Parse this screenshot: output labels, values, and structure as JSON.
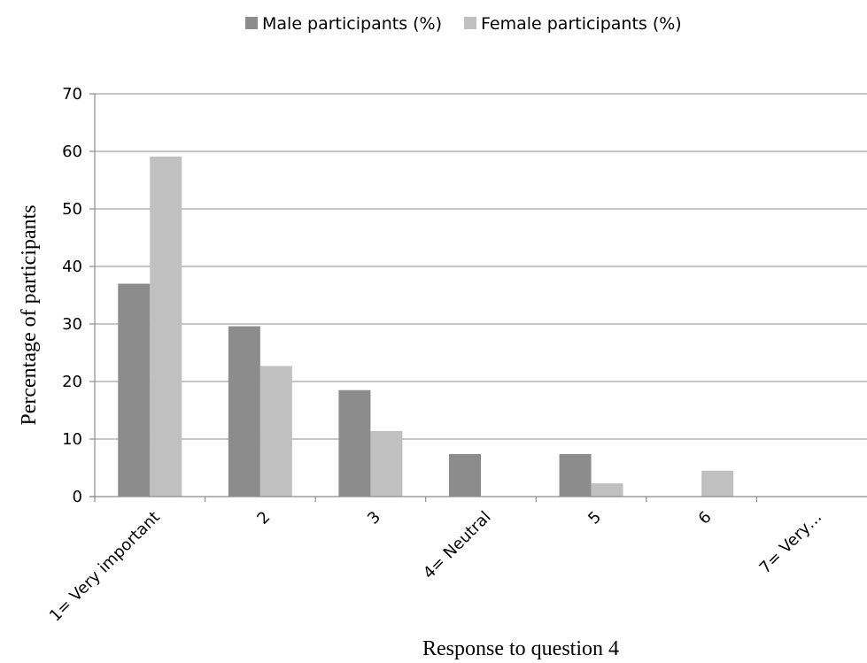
{
  "chart_data": {
    "type": "bar",
    "title": "",
    "xlabel": "Response to question 4",
    "ylabel": "Percentage of participants",
    "categories": [
      "1= Very important",
      "2",
      "3",
      "4= Neutral",
      "5",
      "6",
      "7= Very…"
    ],
    "series": [
      {
        "name": "Male participants (%)",
        "color": "#8c8c8c",
        "values": [
          37,
          29.6,
          18.5,
          7.4,
          7.4,
          0,
          0
        ]
      },
      {
        "name": "Female participants (%)",
        "color": "#c0c0c0",
        "values": [
          59.1,
          22.7,
          11.4,
          0,
          2.3,
          4.5,
          0
        ]
      }
    ],
    "ylim": [
      0,
      70
    ],
    "yticks": [
      0,
      10,
      20,
      30,
      40,
      50,
      60,
      70
    ],
    "grid": true,
    "legend_position": "top"
  }
}
